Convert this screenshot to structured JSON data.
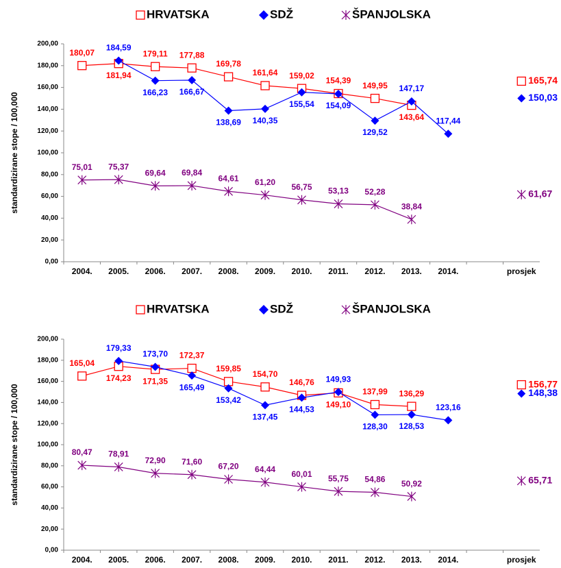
{
  "chart_data": [
    {
      "type": "line",
      "ylabel": "standardizirane stope / 100,000",
      "categories": [
        "2004.",
        "2005.",
        "2006.",
        "2007.",
        "2008.",
        "2009.",
        "2010.",
        "2011.",
        "2012.",
        "2013.",
        "2014.",
        null,
        "prosjek"
      ],
      "ylim": [
        0,
        200
      ],
      "yticks": [
        {
          "value": 0,
          "label": "0,00"
        },
        {
          "value": 20,
          "label": "20,00"
        },
        {
          "value": 40,
          "label": "40,00"
        },
        {
          "value": 60,
          "label": "60,00"
        },
        {
          "value": 80,
          "label": "80,00"
        },
        {
          "value": 100,
          "label": "100,00"
        },
        {
          "value": 120,
          "label": "120,00"
        },
        {
          "value": 140,
          "label": "140,00"
        },
        {
          "value": 160,
          "label": "160,00"
        },
        {
          "value": 180,
          "label": "180,00"
        },
        {
          "value": 200,
          "label": "200,00"
        }
      ],
      "series": [
        {
          "name": "HRVATSKA",
          "color": "#ff0000",
          "marker": "square",
          "values": [
            180.07,
            181.94,
            179.11,
            177.88,
            169.78,
            161.64,
            159.02,
            154.39,
            149.95,
            143.64,
            null,
            null,
            165.74
          ],
          "value_labels": [
            "180,07",
            "181,94",
            "179,11",
            "177,88",
            "169,78",
            "161,64",
            "159,02",
            "154,39",
            "149,95",
            "143,64",
            null,
            null,
            "165,74"
          ]
        },
        {
          "name": "SDŽ",
          "color": "#0000ff",
          "marker": "diamond",
          "values": [
            null,
            184.59,
            166.23,
            166.67,
            138.69,
            140.35,
            155.54,
            154.09,
            129.52,
            147.17,
            117.44,
            null,
            150.03
          ],
          "value_labels": [
            null,
            "184,59",
            "166,23",
            "166,67",
            "138,69",
            "140,35",
            "155,54",
            "154,09",
            "129,52",
            "147,17",
            "117,44",
            null,
            "150,03"
          ]
        },
        {
          "name": "ŠPANJOLSKA",
          "color": "#800080",
          "marker": "asterisk",
          "values": [
            75.01,
            75.37,
            69.64,
            69.84,
            64.61,
            61.2,
            56.75,
            53.13,
            52.28,
            38.84,
            null,
            null,
            61.67
          ],
          "value_labels": [
            "75,01",
            "75,37",
            "69,64",
            "69,84",
            "64,61",
            "61,20",
            "56,75",
            "53,13",
            "52,28",
            "38,84",
            null,
            null,
            "61,67"
          ]
        }
      ]
    },
    {
      "type": "line",
      "ylabel": "standardizirane stope / 100,000",
      "categories": [
        "2004.",
        "2005.",
        "2006.",
        "2007.",
        "2008.",
        "2009.",
        "2010.",
        "2011.",
        "2012.",
        "2013.",
        "2014.",
        null,
        "prosjek"
      ],
      "ylim": [
        0,
        200
      ],
      "yticks": [
        {
          "value": 0,
          "label": "0,00"
        },
        {
          "value": 20,
          "label": "20,00"
        },
        {
          "value": 40,
          "label": "40,00"
        },
        {
          "value": 60,
          "label": "60,00"
        },
        {
          "value": 80,
          "label": "80,00"
        },
        {
          "value": 100,
          "label": "100,00"
        },
        {
          "value": 120,
          "label": "120,00"
        },
        {
          "value": 140,
          "label": "140,00"
        },
        {
          "value": 160,
          "label": "160,00"
        },
        {
          "value": 180,
          "label": "180,00"
        },
        {
          "value": 200,
          "label": "200,00"
        }
      ],
      "series": [
        {
          "name": "HRVATSKA",
          "color": "#ff0000",
          "marker": "square",
          "values": [
            165.04,
            174.23,
            171.35,
            172.37,
            159.85,
            154.7,
            146.76,
            149.1,
            137.99,
            136.29,
            null,
            null,
            156.77
          ],
          "value_labels": [
            "165,04",
            "174,23",
            "171,35",
            "172,37",
            "159,85",
            "154,70",
            "146,76",
            "149,10",
            "137,99",
            "136,29",
            null,
            null,
            "156,77"
          ]
        },
        {
          "name": "SDŽ",
          "color": "#0000ff",
          "marker": "diamond",
          "values": [
            null,
            179.33,
            173.7,
            165.49,
            153.42,
            137.45,
            144.53,
            149.93,
            128.3,
            128.53,
            123.16,
            null,
            148.38
          ],
          "value_labels": [
            null,
            "179,33",
            "173,70",
            "165,49",
            "153,42",
            "137,45",
            "144,53",
            "149,93",
            "128,30",
            "128,53",
            "123,16",
            null,
            "148,38"
          ]
        },
        {
          "name": "ŠPANJOLSKA",
          "color": "#800080",
          "marker": "asterisk",
          "values": [
            80.47,
            78.91,
            72.9,
            71.6,
            67.2,
            64.44,
            60.01,
            55.75,
            54.86,
            50.92,
            null,
            null,
            65.71
          ],
          "value_labels": [
            "80,47",
            "78,91",
            "72,90",
            "71,60",
            "67,20",
            "64,44",
            "60,01",
            "55,75",
            "54,86",
            "50,92",
            null,
            null,
            "65,71"
          ]
        }
      ]
    }
  ]
}
